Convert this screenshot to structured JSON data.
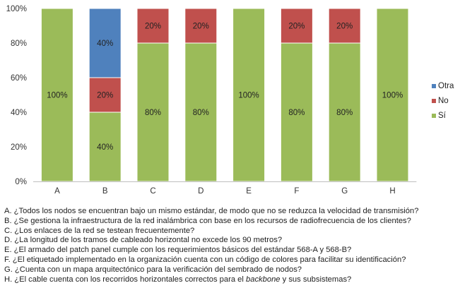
{
  "chart_data": {
    "type": "bar",
    "stacked": true,
    "percent_axis": true,
    "categories": [
      "A",
      "B",
      "C",
      "D",
      "E",
      "F",
      "G",
      "H"
    ],
    "series": [
      {
        "name": "Sí",
        "color": "#9BBB59",
        "values": [
          100,
          40,
          80,
          80,
          100,
          80,
          80,
          100
        ],
        "labels": [
          "100%",
          "40%",
          "80%",
          "80%",
          "100%",
          "80%",
          "80%",
          "100%"
        ]
      },
      {
        "name": "No",
        "color": "#C0504D",
        "values": [
          0,
          20,
          20,
          20,
          0,
          20,
          20,
          0
        ],
        "labels": [
          "",
          "20%",
          "20%",
          "20%",
          "",
          "20%",
          "20%",
          ""
        ]
      },
      {
        "name": "Otra",
        "color": "#4F81BD",
        "values": [
          0,
          40,
          0,
          0,
          0,
          0,
          0,
          0
        ],
        "labels": [
          "",
          "40%",
          "",
          "",
          "",
          "",
          "",
          ""
        ]
      }
    ],
    "y_ticks": [
      "0%",
      "20%",
      "40%",
      "60%",
      "80%",
      "100%"
    ],
    "ylim": [
      0,
      100
    ],
    "grid": false,
    "legend_position": "right",
    "legend_order": [
      "Otra",
      "No",
      "Sí"
    ],
    "title": "",
    "xlabel": "",
    "ylabel": ""
  },
  "questions": [
    "A. ¿Todos los nodos se encuentran bajo un mismo estándar, de modo que no se reduzca la velocidad de transmisión?",
    "B. ¿Se gestiona la infraestructura de la red inalámbrica con base en los recursos de radiofrecuencia de los clientes?",
    "C. ¿Los enlaces de la red se testean frecuentemente?",
    "D. ¿La longitud de los tramos de cableado horizontal no excede los 90 metros?",
    "E. ¿El armado del patch panel cumple con los requerimientos básicos del estándar 568-A y 568-B?",
    "F. ¿El etiquetado implementado en la organización cuenta con un código de colores para facilitar su identificación?",
    "G. ¿Cuenta con un mapa arquitectónico para la verificación del sembrado de nodos?"
  ],
  "question_h": {
    "prefix": "H. ¿El cable cuenta con los recorridos horizontales correctos para el ",
    "emphasis": "backbone",
    "suffix": " y sus subsistemas?"
  }
}
